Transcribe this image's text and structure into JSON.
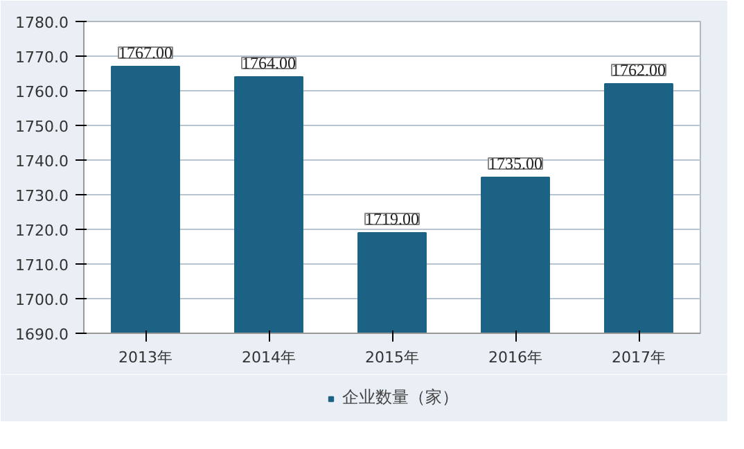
{
  "chart_data": {
    "type": "bar",
    "categories": [
      "2013年",
      "2014年",
      "2015年",
      "2016年",
      "2017年"
    ],
    "series": [
      {
        "name": "企业数量（家）",
        "color": "#1b6284",
        "values": [
          1767,
          1764,
          1719,
          1735,
          1762
        ],
        "value_labels": [
          "1767.00",
          "1764.00",
          "1719.00",
          "1735.00",
          "1762.00"
        ]
      }
    ],
    "ylim": [
      1690,
      1780
    ],
    "yticks": [
      {
        "value": 1690,
        "label": "1690.0"
      },
      {
        "value": 1700,
        "label": "1700.0"
      },
      {
        "value": 1710,
        "label": "1710.0"
      },
      {
        "value": 1720,
        "label": "1720.0"
      },
      {
        "value": 1730,
        "label": "1730.0"
      },
      {
        "value": 1740,
        "label": "1740.0"
      },
      {
        "value": 1750,
        "label": "1750.0"
      },
      {
        "value": 1760,
        "label": "1760.0"
      },
      {
        "value": 1770,
        "label": "1770.0"
      },
      {
        "value": 1780,
        "label": "1780.0"
      }
    ],
    "grid": "y",
    "legend": "bottom"
  }
}
